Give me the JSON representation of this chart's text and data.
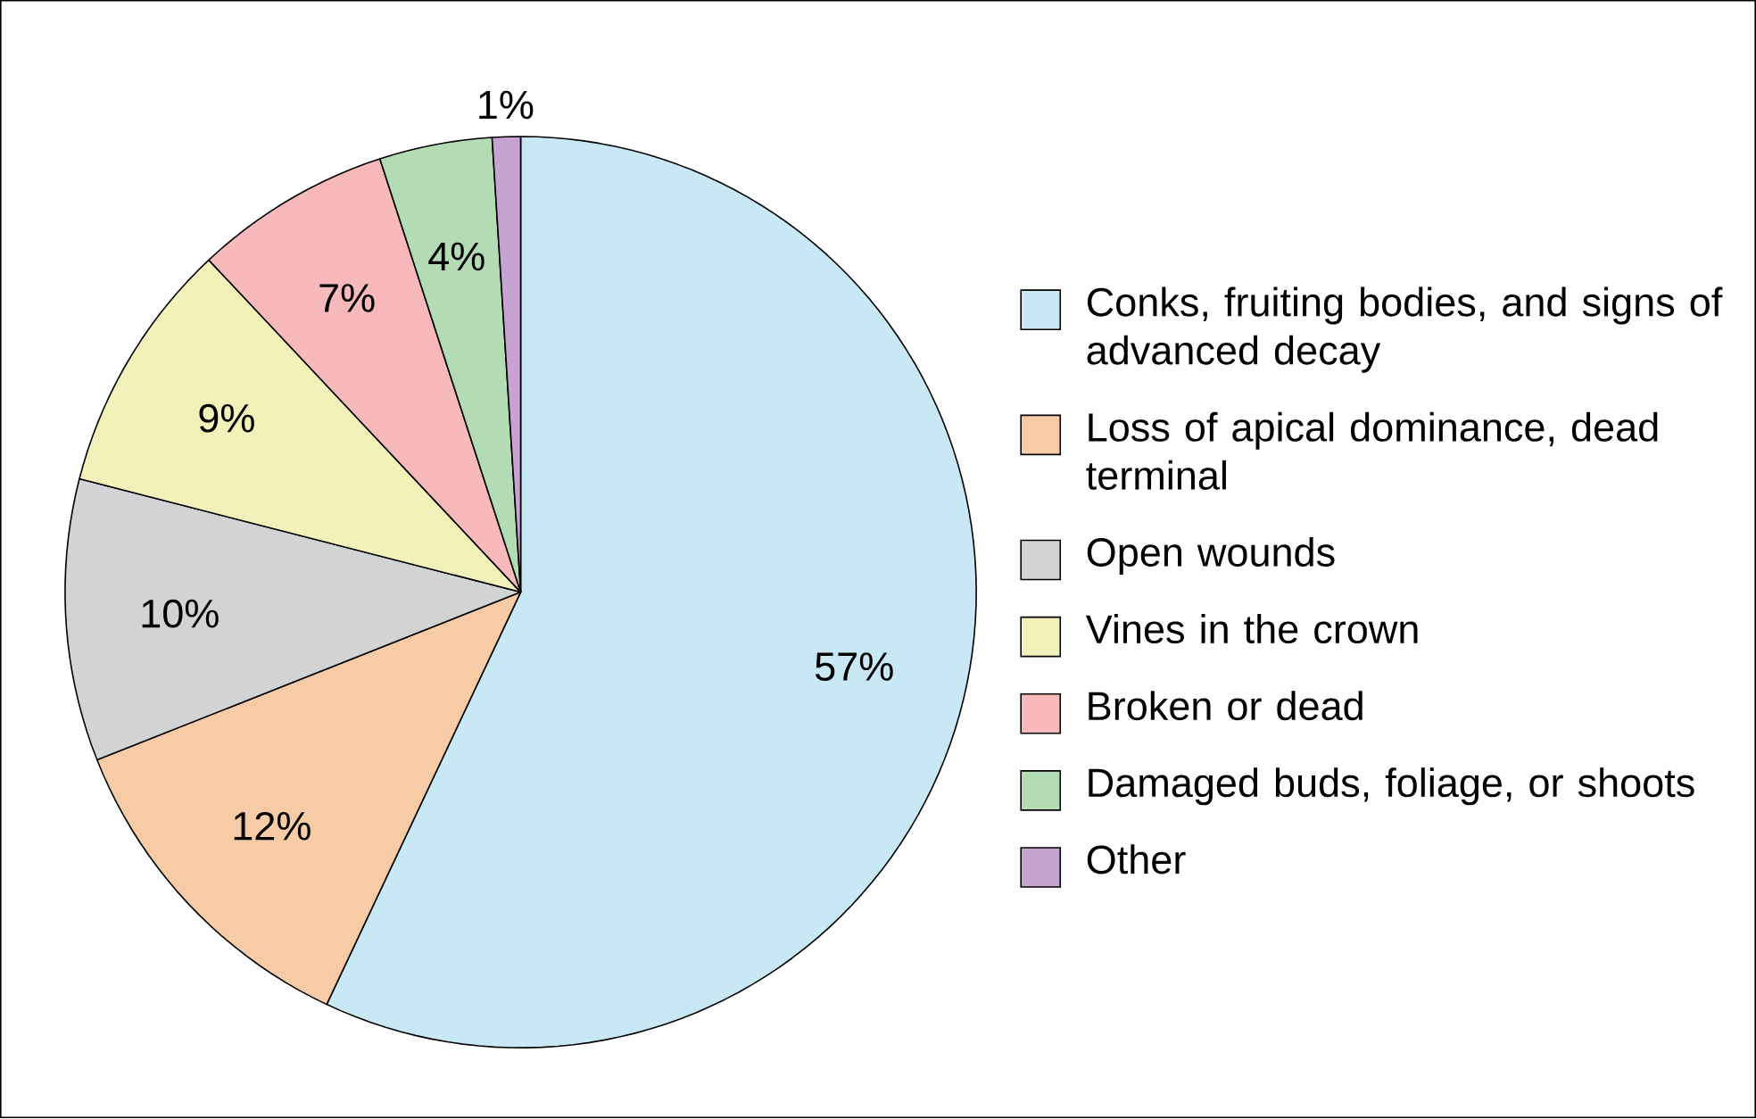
{
  "chart_data": {
    "type": "pie",
    "legend": "right",
    "data_labels": true,
    "categories": [
      "Conks, fruiting bodies, and signs of advanced decay",
      "Loss of apical dominance, dead terminal",
      "Open wounds",
      "Vines in the crown",
      "Broken or dead",
      "Damaged buds, foliage, or shoots",
      "Other"
    ],
    "values": [
      57,
      12,
      10,
      9,
      7,
      4,
      1
    ],
    "value_labels": [
      "57%",
      "12%",
      "10%",
      "9%",
      "7%",
      "4%",
      "1%"
    ],
    "colors": [
      "#c8e8f6",
      "#f6cba6",
      "#d2d3d5",
      "#f2f1b9",
      "#f7b9b9",
      "#b3dbb4",
      "#c6a4d2"
    ]
  }
}
